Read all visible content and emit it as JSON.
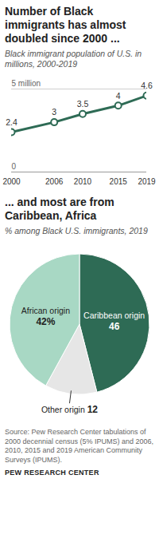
{
  "chart_data": [
    {
      "type": "line",
      "title": "Number of Black immigrants has almost doubled since 2000 ...",
      "subtitle": "Black immigrant population of U.S. in millions, 2000-2019",
      "x": [
        2000,
        2006,
        2010,
        2015,
        2019
      ],
      "values": [
        2.4,
        3,
        3.5,
        4,
        4.6
      ],
      "color": "#2e6b55",
      "marker": "circle",
      "data_labels": true,
      "xlim": [
        2000,
        2019
      ],
      "xticks": [
        2000,
        2006,
        2010,
        2015,
        2019
      ],
      "ylim": [
        0,
        5
      ],
      "yticks": [
        0,
        {
          "value": 5,
          "label": "5 million"
        }
      ],
      "grid": true
    },
    {
      "type": "pie",
      "title": "... and most are from Caribbean, Africa",
      "subtitle": "% among Black U.S. immigrants, 2019",
      "categories": [
        "Caribbean origin",
        "Other origin",
        "African origin"
      ],
      "values": [
        46,
        12,
        42
      ],
      "value_labels": [
        "46",
        "12",
        "42%"
      ],
      "colors": [
        "#2e6b55",
        "#e6e6e6",
        "#a8d8c4"
      ],
      "data_labels": true
    }
  ],
  "source": "Source: Pew Research Center tabulations of 2000 decennial census (5% IPUMS) and 2006, 2010, 2015 and 2019 American Community Surveys (IPUMS).",
  "credit": "PEW RESEARCH CENTER"
}
